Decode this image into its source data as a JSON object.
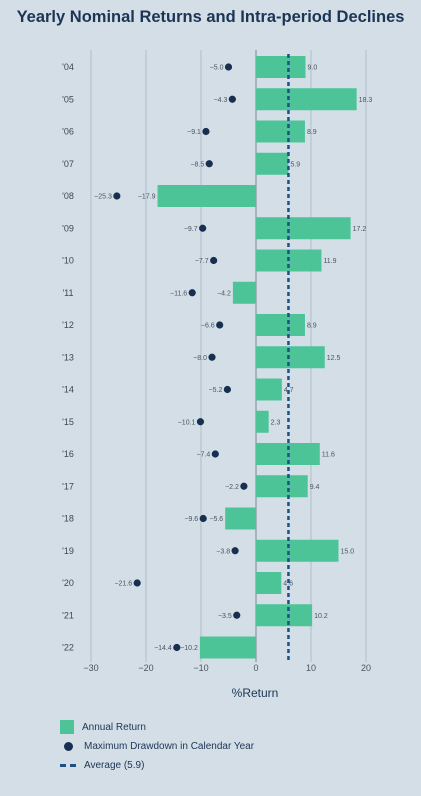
{
  "chart_data": {
    "type": "bar",
    "title": "Yearly Nominal Returns and Intra-period Declines",
    "xlabel": "%Return",
    "xlim": [
      -30,
      20
    ],
    "xticks": [
      -30,
      -20,
      -10,
      0,
      10,
      20
    ],
    "tick_labels": [
      "−30",
      "−20",
      "−10",
      "0",
      "10",
      "20"
    ],
    "categories": [
      "'04",
      "'05",
      "'06",
      "'07",
      "'08",
      "'09",
      "'10",
      "'11",
      "'12",
      "'13",
      "'14",
      "'15",
      "'16",
      "'17",
      "'18",
      "'19",
      "'20",
      "'21",
      "'22"
    ],
    "series": [
      {
        "name": "Annual Return",
        "kind": "bar",
        "values": [
          9.0,
          18.3,
          8.9,
          5.9,
          -17.9,
          17.2,
          11.9,
          -4.2,
          8.9,
          12.5,
          4.7,
          2.3,
          11.6,
          9.4,
          -5.6,
          15.0,
          4.6,
          10.2,
          -10.2
        ],
        "labels": [
          "9.0",
          "18.3",
          "8.9",
          "5.9",
          "−17.9",
          "17.2",
          "11.9",
          "−4.2",
          "8.9",
          "12.5",
          "4.7",
          "2.3",
          "11.6",
          "9.4",
          "−5.6",
          "15.0",
          "4.6",
          "10.2",
          "−10.2"
        ],
        "color": "#4cc498"
      },
      {
        "name": "Maximum Drawdown in Calendar Year",
        "kind": "dot",
        "values": [
          -5.0,
          -4.3,
          -9.1,
          -8.5,
          -25.3,
          -9.7,
          -7.7,
          -11.6,
          -6.6,
          -8.0,
          -5.2,
          -10.1,
          -7.4,
          -2.2,
          -9.6,
          -3.8,
          -21.6,
          -3.5,
          -14.4
        ],
        "labels": [
          "−5.0",
          "−4.3",
          "−9.1",
          "−8.5",
          "−25.3",
          "−9.7",
          "−7.7",
          "−11.6",
          "−6.6",
          "−8.0",
          "−5.2",
          "−10.1",
          "−7.4",
          "−2.2",
          "−9.6",
          "−3.8",
          "−21.6",
          "−3.5",
          "−14.4"
        ],
        "color": "#17304f"
      }
    ],
    "average": {
      "name": "Average (5.9)",
      "value": 5.9,
      "color": "#1b5185"
    },
    "grid": true,
    "legend_position": "bottom-left"
  }
}
